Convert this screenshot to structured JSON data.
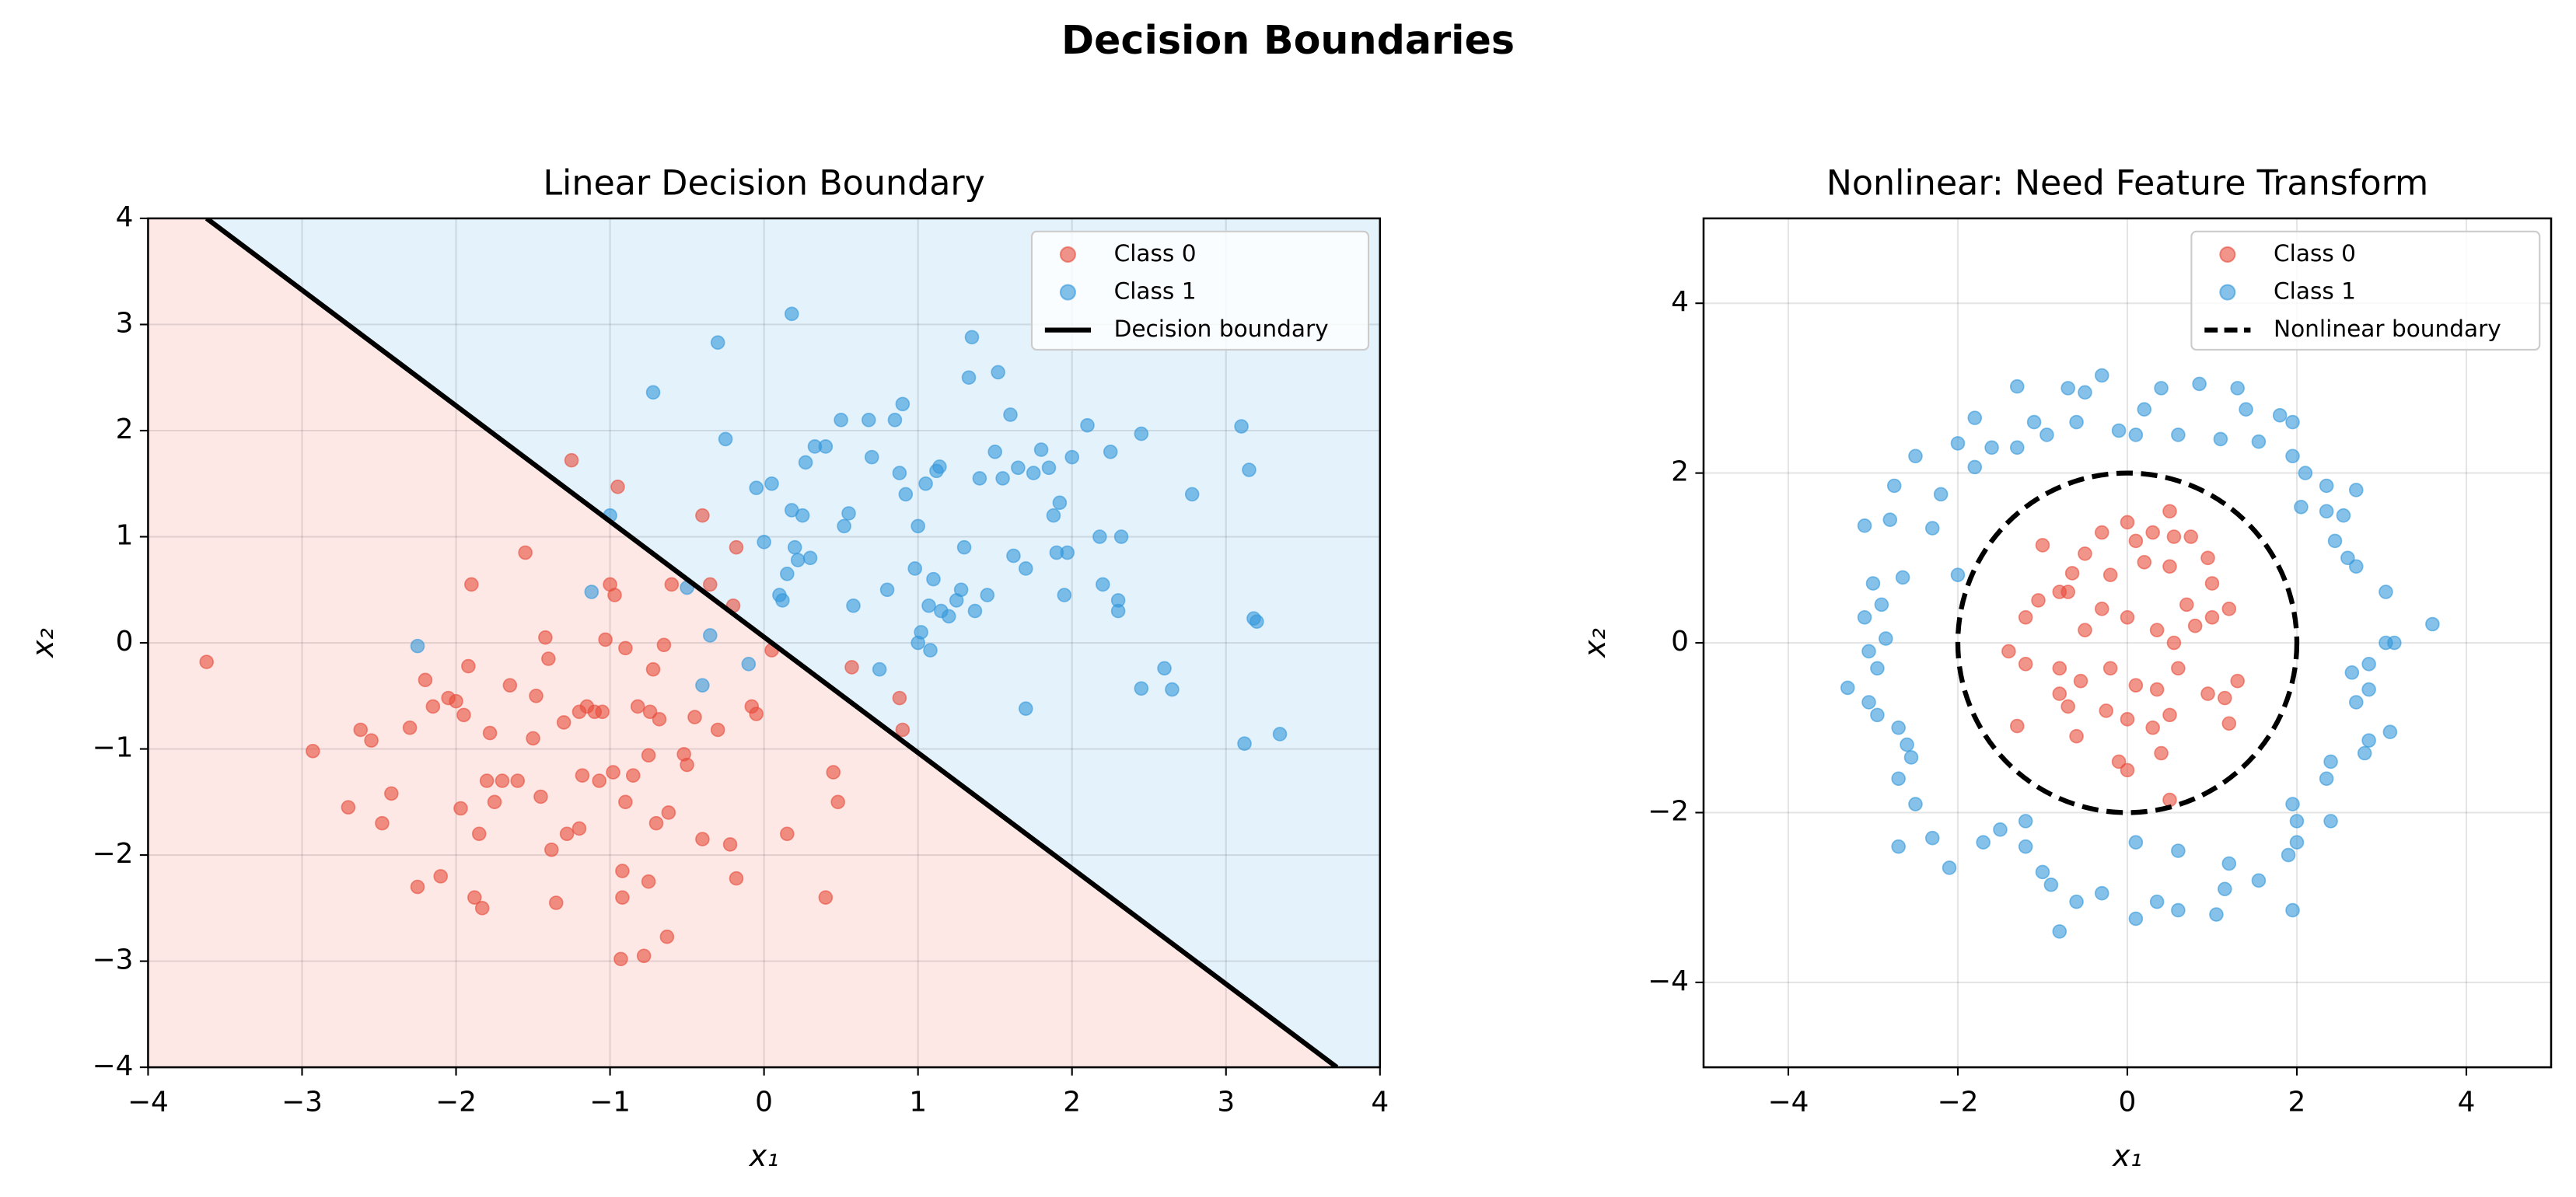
{
  "title": "Decision Boundaries",
  "chart_data": [
    {
      "type": "scatter",
      "title": "Linear Decision Boundary",
      "xlabel": "x₁",
      "ylabel": "x₂",
      "xlim": [
        -4,
        4
      ],
      "ylim": [
        -4,
        4
      ],
      "xticks": [
        {
          "value": -4,
          "label": "−4"
        },
        {
          "value": -3,
          "label": "−3"
        },
        {
          "value": -2,
          "label": "−2"
        },
        {
          "value": -1,
          "label": "−1"
        },
        0,
        1,
        2,
        3,
        4
      ],
      "yticks": [
        {
          "value": -4,
          "label": "−4"
        },
        {
          "value": -3,
          "label": "−3"
        },
        {
          "value": -2,
          "label": "−2"
        },
        {
          "value": -1,
          "label": "−1"
        },
        0,
        1,
        2,
        3,
        4
      ],
      "grid": true,
      "legend": "upper right",
      "region_colors": [
        "#fde8e6",
        "#e4f2fc"
      ],
      "series": [
        {
          "name": "Class 0",
          "color": "#e74c3c",
          "x": [
            -3.62,
            -2.93,
            -2.7,
            -2.62,
            -2.55,
            -2.48,
            -2.42,
            -2.3,
            -2.25,
            -2.2,
            -2.15,
            -2.1,
            -2.05,
            -2.0,
            -1.95,
            -1.97,
            -1.92,
            -1.9,
            -1.88,
            -1.85,
            -1.83,
            -1.8,
            -1.78,
            -1.75,
            -1.7,
            -1.65,
            -1.6,
            -1.55,
            -1.5,
            -1.48,
            -1.45,
            -1.42,
            -1.4,
            -1.38,
            -1.35,
            -1.3,
            -1.28,
            -1.25,
            -1.2,
            -1.2,
            -1.18,
            -1.15,
            -1.1,
            -1.07,
            -1.05,
            -1.03,
            -1.0,
            -0.98,
            -0.97,
            -0.95,
            -0.93,
            -0.92,
            -0.92,
            -0.9,
            -0.9,
            -0.85,
            -0.82,
            -0.78,
            -0.75,
            -0.75,
            -0.74,
            -0.72,
            -0.7,
            -0.68,
            -0.65,
            -0.63,
            -0.62,
            -0.6,
            -0.52,
            -0.5,
            -0.45,
            -0.4,
            -0.35,
            -0.3,
            -0.22,
            -0.18,
            -0.18,
            -0.2,
            -0.08,
            -0.05,
            0.05,
            0.15,
            0.4,
            0.45,
            0.48,
            0.57,
            0.88,
            0.9,
            -0.4
          ],
          "y": [
            -0.18,
            -1.02,
            -1.55,
            -0.82,
            -0.92,
            -1.7,
            -1.42,
            -0.8,
            -2.3,
            -0.35,
            -0.6,
            -2.2,
            -0.52,
            -0.55,
            -0.68,
            -1.56,
            -0.22,
            0.55,
            -2.4,
            -1.8,
            -2.5,
            -1.3,
            -0.85,
            -1.5,
            -1.3,
            -0.4,
            -1.3,
            0.85,
            -0.9,
            -0.5,
            -1.45,
            0.05,
            -0.15,
            -1.95,
            -2.45,
            -0.75,
            -1.8,
            1.72,
            -1.75,
            -0.65,
            -1.25,
            -0.6,
            -0.65,
            -1.3,
            -0.65,
            0.03,
            0.55,
            -1.22,
            0.45,
            1.47,
            -2.98,
            -2.4,
            -2.15,
            -1.5,
            -0.05,
            -1.25,
            -0.6,
            -2.95,
            -2.25,
            -1.06,
            -0.65,
            -0.25,
            -1.7,
            -0.72,
            -0.02,
            -2.77,
            -1.6,
            0.55,
            -1.05,
            -1.15,
            -0.7,
            -1.85,
            0.55,
            -0.82,
            -1.9,
            -2.22,
            0.9,
            0.35,
            -0.6,
            -0.67,
            -0.07,
            -1.8,
            -2.4,
            -1.22,
            -1.5,
            -0.23,
            -0.52,
            -0.82,
            1.2
          ]
        },
        {
          "name": "Class 1",
          "color": "#3498db",
          "x": [
            -2.25,
            -1.12,
            -1.0,
            -0.72,
            -0.5,
            -0.4,
            -0.35,
            -0.3,
            -0.25,
            -0.1,
            -0.05,
            0.0,
            0.05,
            0.1,
            0.12,
            0.15,
            0.18,
            0.18,
            0.2,
            0.22,
            0.25,
            0.27,
            0.3,
            0.33,
            0.4,
            0.5,
            0.52,
            0.55,
            0.58,
            0.68,
            0.7,
            0.75,
            0.8,
            0.85,
            0.88,
            0.9,
            0.92,
            0.98,
            1.0,
            1.0,
            1.02,
            1.05,
            1.07,
            1.08,
            1.1,
            1.12,
            1.14,
            1.15,
            1.2,
            1.25,
            1.28,
            1.3,
            1.33,
            1.35,
            1.37,
            1.4,
            1.45,
            1.5,
            1.52,
            1.55,
            1.6,
            1.62,
            1.65,
            1.7,
            1.7,
            1.75,
            1.8,
            1.85,
            1.88,
            1.9,
            1.92,
            1.95,
            1.97,
            2.0,
            2.1,
            2.18,
            2.2,
            2.25,
            2.3,
            2.3,
            2.32,
            2.45,
            2.45,
            2.6,
            2.65,
            2.78,
            3.1,
            3.12,
            3.15,
            3.18,
            3.2,
            3.35
          ],
          "y": [
            -0.03,
            0.48,
            1.2,
            2.36,
            0.52,
            -0.4,
            0.07,
            2.83,
            1.92,
            -0.2,
            1.46,
            0.95,
            1.5,
            0.45,
            0.4,
            0.65,
            3.1,
            1.25,
            0.9,
            0.78,
            1.2,
            1.7,
            0.8,
            1.85,
            1.85,
            2.1,
            1.1,
            1.22,
            0.35,
            2.1,
            1.75,
            -0.25,
            0.5,
            2.1,
            1.6,
            2.25,
            1.4,
            0.7,
            1.1,
            0.0,
            0.1,
            1.5,
            0.35,
            -0.07,
            0.6,
            1.62,
            1.66,
            0.3,
            0.25,
            0.4,
            0.5,
            0.9,
            2.5,
            2.88,
            0.3,
            1.55,
            0.45,
            1.8,
            2.55,
            1.55,
            2.15,
            0.82,
            1.65,
            0.7,
            -0.62,
            1.6,
            1.82,
            1.65,
            1.2,
            0.85,
            1.32,
            0.45,
            0.85,
            1.75,
            2.05,
            1.0,
            0.55,
            1.8,
            0.4,
            0.3,
            1.0,
            -0.43,
            1.97,
            -0.24,
            -0.44,
            1.4,
            2.04,
            -0.95,
            1.63,
            0.23,
            0.2,
            -0.86
          ]
        }
      ],
      "boundary": {
        "type": "line",
        "name": "Decision boundary",
        "color": "#000000",
        "x": [
          -3.62,
          3.72
        ],
        "y": [
          4,
          -4
        ]
      }
    },
    {
      "type": "scatter",
      "title": "Nonlinear: Need Feature Transform",
      "xlabel": "x₁",
      "ylabel": "x₂",
      "xlim": [
        -5,
        5
      ],
      "ylim": [
        -5,
        5
      ],
      "xticks": [
        {
          "value": -4,
          "label": "−4"
        },
        {
          "value": -2,
          "label": "−2"
        },
        0,
        2,
        4
      ],
      "yticks": [
        {
          "value": -4,
          "label": "−4"
        },
        {
          "value": -2,
          "label": "−2"
        },
        0,
        2,
        4
      ],
      "grid": true,
      "legend": "upper right",
      "series": [
        {
          "name": "Class 0",
          "color": "#e74c3c",
          "x": [
            0.5,
            0.3,
            0.0,
            -0.3,
            0.95,
            0.75,
            -1.0,
            -0.5,
            0.1,
            0.55,
            -0.8,
            -0.65,
            -0.2,
            0.2,
            0.5,
            1.0,
            1.2,
            -1.2,
            -1.05,
            -0.7,
            -0.5,
            -0.3,
            0.0,
            0.35,
            0.55,
            0.8,
            1.0,
            -1.4,
            -1.2,
            -0.8,
            -0.55,
            -0.2,
            0.1,
            0.35,
            0.6,
            0.95,
            1.15,
            1.3,
            -1.3,
            -0.8,
            -0.6,
            -0.25,
            0.0,
            0.3,
            0.5,
            1.2,
            -0.1,
            0.0,
            0.4,
            0.5,
            -0.7,
            0.7
          ],
          "y": [
            1.55,
            1.3,
            1.42,
            1.3,
            1.0,
            1.25,
            1.15,
            1.05,
            1.2,
            1.25,
            0.6,
            0.82,
            0.8,
            0.95,
            0.9,
            0.7,
            0.4,
            0.3,
            0.5,
            0.6,
            0.15,
            0.4,
            0.3,
            0.15,
            0.0,
            0.2,
            0.3,
            -0.1,
            -0.25,
            -0.3,
            -0.45,
            -0.3,
            -0.5,
            -0.55,
            -0.3,
            -0.6,
            -0.65,
            -0.45,
            -0.98,
            -0.6,
            -1.1,
            -0.8,
            -0.9,
            -1.0,
            -0.85,
            -0.95,
            -1.4,
            -1.5,
            -1.3,
            -1.85,
            -0.75,
            0.45
          ]
        },
        {
          "name": "Class 1",
          "color": "#3498db",
          "x": [
            -0.3,
            0.4,
            0.85,
            1.3,
            -0.5,
            -0.7,
            -1.3,
            0.2,
            -1.8,
            1.4,
            -0.1,
            0.1,
            1.1,
            1.55,
            1.8,
            1.95,
            -2.5,
            -2.0,
            -1.6,
            -1.3,
            -1.8,
            -2.2,
            -2.75,
            -3.1,
            -2.8,
            -2.3,
            -2.65,
            -3.0,
            -2.9,
            -3.1,
            -2.85,
            -3.05,
            -3.3,
            -2.95,
            -3.05,
            -2.95,
            -2.7,
            -2.6,
            -2.55,
            -2.7,
            -2.5,
            -2.7,
            -2.3,
            -2.1,
            -1.7,
            -1.5,
            -1.2,
            -1.2,
            -1.0,
            -0.9,
            -0.8,
            -0.6,
            -0.3,
            0.1,
            0.1,
            0.35,
            0.6,
            0.6,
            1.05,
            1.15,
            1.2,
            1.55,
            1.9,
            1.95,
            2.0,
            2.0,
            1.95,
            2.35,
            2.4,
            2.4,
            2.8,
            2.85,
            3.1,
            2.7,
            2.65,
            2.85,
            2.85,
            3.05,
            3.15,
            3.6,
            3.05,
            2.7,
            2.6,
            2.45,
            2.35,
            2.55,
            2.7,
            2.35,
            2.1,
            2.05,
            1.95,
            -1.1,
            -0.95,
            -0.6,
            0.6,
            -2.0
          ],
          "y": [
            3.15,
            3.0,
            3.05,
            3.0,
            2.95,
            3.0,
            3.02,
            2.75,
            2.65,
            2.75,
            2.5,
            2.45,
            2.4,
            2.37,
            2.68,
            2.6,
            2.2,
            2.35,
            2.3,
            2.3,
            2.07,
            1.75,
            1.85,
            1.38,
            1.45,
            1.35,
            0.77,
            0.7,
            0.45,
            0.3,
            0.05,
            -0.1,
            -0.53,
            -0.3,
            -0.7,
            -0.85,
            -1.0,
            -1.2,
            -1.35,
            -1.6,
            -1.9,
            -2.4,
            -2.3,
            -2.65,
            -2.35,
            -2.2,
            -2.1,
            -2.4,
            -2.7,
            -2.85,
            -3.4,
            -3.05,
            -2.95,
            -3.25,
            -2.35,
            -3.05,
            -2.45,
            -3.15,
            -3.2,
            -2.9,
            -2.6,
            -2.8,
            -2.5,
            -3.15,
            -2.1,
            -2.35,
            -1.9,
            -1.6,
            -2.1,
            -1.4,
            -1.3,
            -1.15,
            -1.05,
            -0.7,
            -0.35,
            -0.25,
            -0.55,
            0.0,
            0.0,
            0.22,
            0.6,
            0.9,
            1.0,
            1.2,
            1.55,
            1.5,
            1.8,
            1.85,
            2.0,
            1.6,
            2.2,
            2.6,
            2.45,
            2.6,
            2.45,
            0.8
          ]
        }
      ],
      "boundary": {
        "type": "circle",
        "name": "Nonlinear boundary",
        "color": "#000000",
        "radius": 2
      }
    }
  ]
}
